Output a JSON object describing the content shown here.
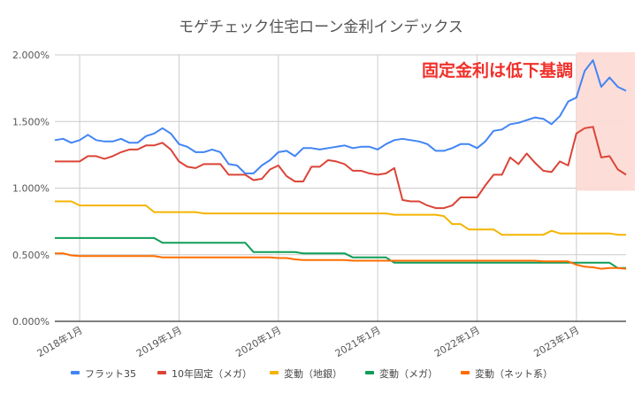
{
  "chart_data": {
    "type": "line",
    "title": "モゲチェック住宅ローン金利インデックス",
    "annotation": "固定金利は低下基調",
    "xlabel": "",
    "ylabel": "",
    "ylim": [
      0,
      2
    ],
    "yticks": [
      "0.000%",
      "0.500%",
      "1.000%",
      "1.500%",
      "2.000%"
    ],
    "ytick_values": [
      0,
      0.5,
      1,
      1.5,
      2
    ],
    "xtick_labels": [
      "2018年1月",
      "2019年1月",
      "2020年1月",
      "2021年1月",
      "2022年1月",
      "2023年1月"
    ],
    "xtick_dates": [
      "2018-01",
      "2019-01",
      "2020-01",
      "2021-01",
      "2022-01",
      "2023-01"
    ],
    "grid": true,
    "legend_position": "bottom",
    "highlight_region": {
      "x_from": "2023-01",
      "x_to": "2023-07",
      "y_from": 1.0,
      "y_to": 2.0,
      "color": "#fdd9d4"
    },
    "annotation_color": "#f0302a",
    "x": [
      "2017-10",
      "2017-11",
      "2017-12",
      "2018-01",
      "2018-02",
      "2018-03",
      "2018-04",
      "2018-05",
      "2018-06",
      "2018-07",
      "2018-08",
      "2018-09",
      "2018-10",
      "2018-11",
      "2018-12",
      "2019-01",
      "2019-02",
      "2019-03",
      "2019-04",
      "2019-05",
      "2019-06",
      "2019-07",
      "2019-08",
      "2019-09",
      "2019-10",
      "2019-11",
      "2019-12",
      "2020-01",
      "2020-02",
      "2020-03",
      "2020-04",
      "2020-05",
      "2020-06",
      "2020-07",
      "2020-08",
      "2020-09",
      "2020-10",
      "2020-11",
      "2020-12",
      "2021-01",
      "2021-02",
      "2021-03",
      "2021-04",
      "2021-05",
      "2021-06",
      "2021-07",
      "2021-08",
      "2021-09",
      "2021-10",
      "2021-11",
      "2021-12",
      "2022-01",
      "2022-02",
      "2022-03",
      "2022-04",
      "2022-05",
      "2022-06",
      "2022-07",
      "2022-08",
      "2022-09",
      "2022-10",
      "2022-11",
      "2022-12",
      "2023-01",
      "2023-02",
      "2023-03",
      "2023-04",
      "2023-05",
      "2023-06",
      "2023-07"
    ],
    "series": [
      {
        "name": "フラット35",
        "color": "#4285f4",
        "values": [
          1.36,
          1.37,
          1.34,
          1.36,
          1.4,
          1.36,
          1.35,
          1.35,
          1.37,
          1.34,
          1.34,
          1.39,
          1.41,
          1.45,
          1.41,
          1.33,
          1.31,
          1.27,
          1.27,
          1.29,
          1.27,
          1.18,
          1.17,
          1.11,
          1.11,
          1.17,
          1.21,
          1.27,
          1.28,
          1.24,
          1.3,
          1.3,
          1.29,
          1.3,
          1.31,
          1.32,
          1.3,
          1.31,
          1.31,
          1.29,
          1.33,
          1.36,
          1.37,
          1.36,
          1.35,
          1.33,
          1.28,
          1.28,
          1.3,
          1.33,
          1.33,
          1.3,
          1.35,
          1.43,
          1.44,
          1.48,
          1.49,
          1.51,
          1.53,
          1.52,
          1.48,
          1.54,
          1.65,
          1.68,
          1.88,
          1.96,
          1.76,
          1.83,
          1.76,
          1.73
        ]
      },
      {
        "name": "10年固定（メガ）",
        "color": "#db4437",
        "values": [
          1.2,
          1.2,
          1.2,
          1.2,
          1.24,
          1.24,
          1.22,
          1.24,
          1.27,
          1.29,
          1.29,
          1.32,
          1.32,
          1.34,
          1.29,
          1.2,
          1.16,
          1.15,
          1.18,
          1.18,
          1.18,
          1.1,
          1.1,
          1.1,
          1.06,
          1.07,
          1.14,
          1.17,
          1.09,
          1.05,
          1.05,
          1.16,
          1.16,
          1.21,
          1.2,
          1.18,
          1.13,
          1.13,
          1.11,
          1.1,
          1.11,
          1.15,
          0.91,
          0.9,
          0.9,
          0.87,
          0.85,
          0.85,
          0.87,
          0.93,
          0.93,
          0.93,
          1.02,
          1.1,
          1.1,
          1.23,
          1.18,
          1.26,
          1.19,
          1.13,
          1.12,
          1.2,
          1.17,
          1.41,
          1.45,
          1.46,
          1.23,
          1.24,
          1.14,
          1.1
        ]
      },
      {
        "name": "変動（地銀）",
        "color": "#f4b400",
        "values": [
          0.9,
          0.9,
          0.9,
          0.87,
          0.87,
          0.87,
          0.87,
          0.87,
          0.87,
          0.87,
          0.87,
          0.87,
          0.82,
          0.82,
          0.82,
          0.82,
          0.82,
          0.82,
          0.81,
          0.81,
          0.81,
          0.81,
          0.81,
          0.81,
          0.81,
          0.81,
          0.81,
          0.81,
          0.81,
          0.81,
          0.81,
          0.81,
          0.81,
          0.81,
          0.81,
          0.81,
          0.81,
          0.81,
          0.81,
          0.81,
          0.81,
          0.8,
          0.8,
          0.8,
          0.8,
          0.8,
          0.8,
          0.79,
          0.73,
          0.73,
          0.69,
          0.69,
          0.69,
          0.69,
          0.65,
          0.65,
          0.65,
          0.65,
          0.65,
          0.65,
          0.68,
          0.66,
          0.66,
          0.66,
          0.66,
          0.66,
          0.66,
          0.66,
          0.65,
          0.65
        ]
      },
      {
        "name": "変動（メガ）",
        "color": "#0f9d58",
        "values": [
          0.625,
          0.625,
          0.625,
          0.625,
          0.625,
          0.625,
          0.625,
          0.625,
          0.625,
          0.625,
          0.625,
          0.625,
          0.625,
          0.59,
          0.59,
          0.59,
          0.59,
          0.59,
          0.59,
          0.59,
          0.59,
          0.59,
          0.59,
          0.59,
          0.52,
          0.52,
          0.52,
          0.52,
          0.52,
          0.52,
          0.51,
          0.51,
          0.51,
          0.51,
          0.51,
          0.51,
          0.48,
          0.48,
          0.48,
          0.48,
          0.48,
          0.44,
          0.44,
          0.44,
          0.44,
          0.44,
          0.44,
          0.44,
          0.44,
          0.44,
          0.44,
          0.44,
          0.44,
          0.44,
          0.44,
          0.44,
          0.44,
          0.44,
          0.44,
          0.44,
          0.44,
          0.44,
          0.44,
          0.44,
          0.44,
          0.44,
          0.44,
          0.44,
          0.4,
          0.4
        ]
      },
      {
        "name": "変動（ネット系）",
        "color": "#ff6d01",
        "values": [
          0.51,
          0.51,
          0.495,
          0.49,
          0.49,
          0.49,
          0.49,
          0.49,
          0.49,
          0.49,
          0.49,
          0.49,
          0.49,
          0.48,
          0.48,
          0.48,
          0.48,
          0.48,
          0.48,
          0.48,
          0.48,
          0.48,
          0.48,
          0.48,
          0.48,
          0.48,
          0.48,
          0.475,
          0.475,
          0.465,
          0.46,
          0.46,
          0.46,
          0.46,
          0.46,
          0.46,
          0.455,
          0.455,
          0.455,
          0.455,
          0.455,
          0.455,
          0.455,
          0.455,
          0.455,
          0.455,
          0.455,
          0.455,
          0.455,
          0.455,
          0.455,
          0.455,
          0.455,
          0.455,
          0.455,
          0.455,
          0.455,
          0.455,
          0.455,
          0.45,
          0.45,
          0.45,
          0.45,
          0.425,
          0.41,
          0.405,
          0.395,
          0.4,
          0.4,
          0.395
        ]
      }
    ]
  }
}
